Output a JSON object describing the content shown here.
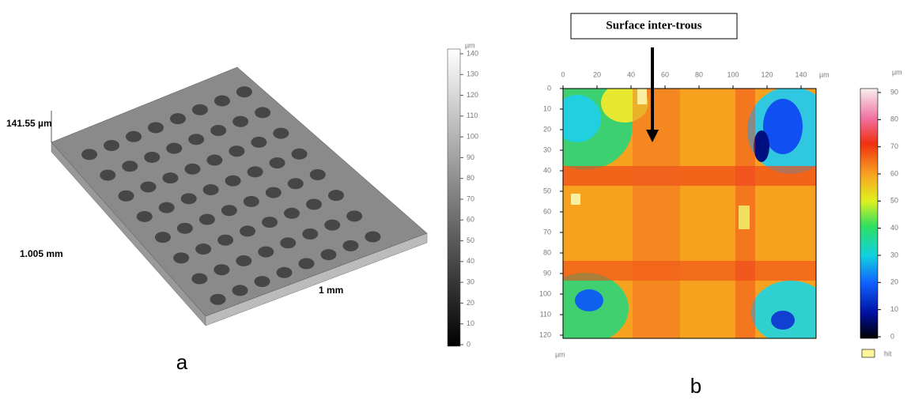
{
  "panel_a": {
    "label": "a",
    "height_label": "141.55 µm",
    "width_label": "1.005 mm",
    "depth_label": "1 mm",
    "colorbar": {
      "unit": "µm",
      "ticks": [
        0,
        10,
        20,
        30,
        40,
        50,
        60,
        70,
        80,
        90,
        100,
        110,
        120,
        130,
        140
      ]
    }
  },
  "panel_b": {
    "label": "b",
    "annotation": "Surface inter-trous",
    "x_axis": {
      "unit": "µm",
      "ticks": [
        0,
        20,
        40,
        60,
        80,
        100,
        120,
        140
      ]
    },
    "y_axis": {
      "unit": "µm",
      "ticks": [
        0,
        10,
        20,
        30,
        40,
        50,
        60,
        70,
        80,
        90,
        100,
        110,
        120
      ]
    },
    "colorbar": {
      "unit": "µm",
      "ticks": [
        0,
        10,
        20,
        30,
        40,
        50,
        60,
        70,
        80,
        90
      ],
      "missing_label": "hit"
    }
  }
}
